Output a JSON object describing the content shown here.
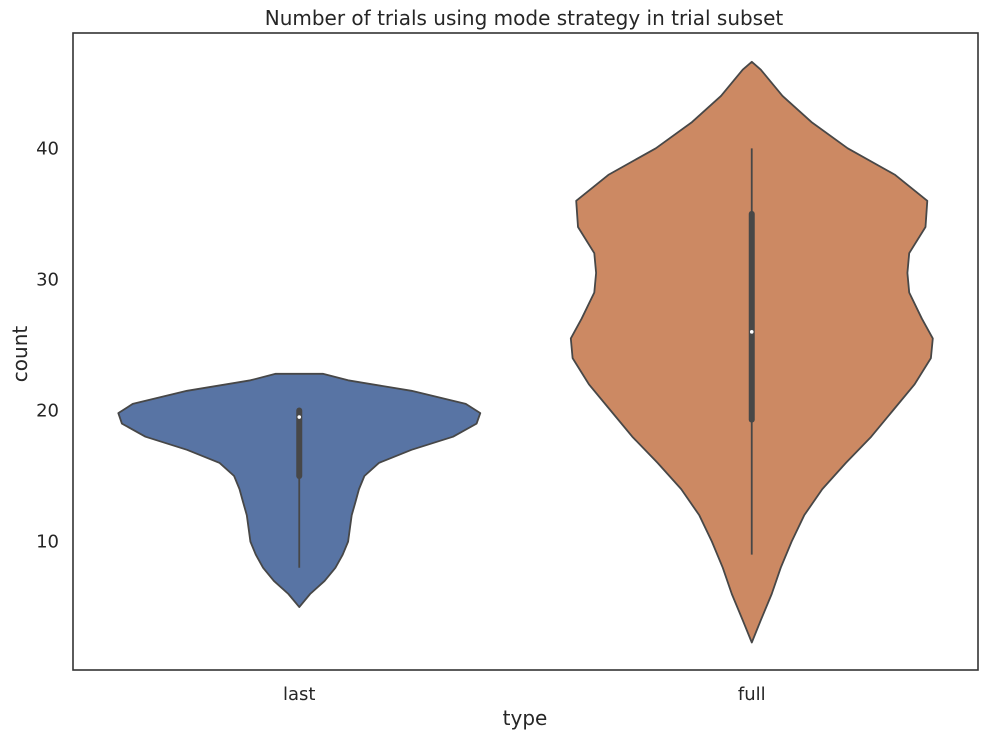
{
  "chart_data": {
    "type": "violin",
    "title": "Number of trials using mode strategy in trial subset",
    "xlabel": "type",
    "ylabel": "count",
    "categories": [
      "last",
      "full"
    ],
    "ylim": [
      0.2,
      48.8
    ],
    "yticks": [
      10,
      20,
      30,
      40
    ],
    "grid": false,
    "legend": "none",
    "series": [
      {
        "category": "last",
        "color": "#5874a4",
        "min": 8,
        "q1": 15,
        "median": 19.5,
        "q3": 20,
        "max": 20,
        "density": [
          [
            5.0,
            0.0
          ],
          [
            6.0,
            0.06
          ],
          [
            7.0,
            0.14
          ],
          [
            8.0,
            0.2
          ],
          [
            9.0,
            0.24
          ],
          [
            10.0,
            0.27
          ],
          [
            11.0,
            0.28
          ],
          [
            12.0,
            0.29
          ],
          [
            13.0,
            0.31
          ],
          [
            14.0,
            0.33
          ],
          [
            15.0,
            0.36
          ],
          [
            16.0,
            0.44
          ],
          [
            17.0,
            0.62
          ],
          [
            18.0,
            0.85
          ],
          [
            19.0,
            0.98
          ],
          [
            19.8,
            1.0
          ],
          [
            20.5,
            0.92
          ],
          [
            21.5,
            0.62
          ],
          [
            22.3,
            0.27
          ],
          [
            22.8,
            0.13
          ]
        ]
      },
      {
        "category": "full",
        "color": "#cc8963",
        "min": 9,
        "q1": 19.3,
        "median": 26,
        "q3": 35,
        "max": 40,
        "density": [
          [
            2.3,
            0.0
          ],
          [
            4.0,
            0.05
          ],
          [
            6.0,
            0.11
          ],
          [
            8.0,
            0.16
          ],
          [
            10.0,
            0.22
          ],
          [
            12.0,
            0.29
          ],
          [
            14.0,
            0.39
          ],
          [
            16.0,
            0.52
          ],
          [
            18.0,
            0.66
          ],
          [
            20.0,
            0.78
          ],
          [
            22.0,
            0.9
          ],
          [
            24.0,
            0.99
          ],
          [
            25.5,
            1.0
          ],
          [
            27.0,
            0.94
          ],
          [
            29.0,
            0.87
          ],
          [
            30.5,
            0.86
          ],
          [
            32.0,
            0.87
          ],
          [
            34.0,
            0.96
          ],
          [
            36.0,
            0.97
          ],
          [
            38.0,
            0.79
          ],
          [
            40.0,
            0.53
          ],
          [
            42.0,
            0.33
          ],
          [
            44.0,
            0.17
          ],
          [
            46.0,
            0.05
          ],
          [
            46.6,
            0.0
          ]
        ]
      }
    ]
  }
}
